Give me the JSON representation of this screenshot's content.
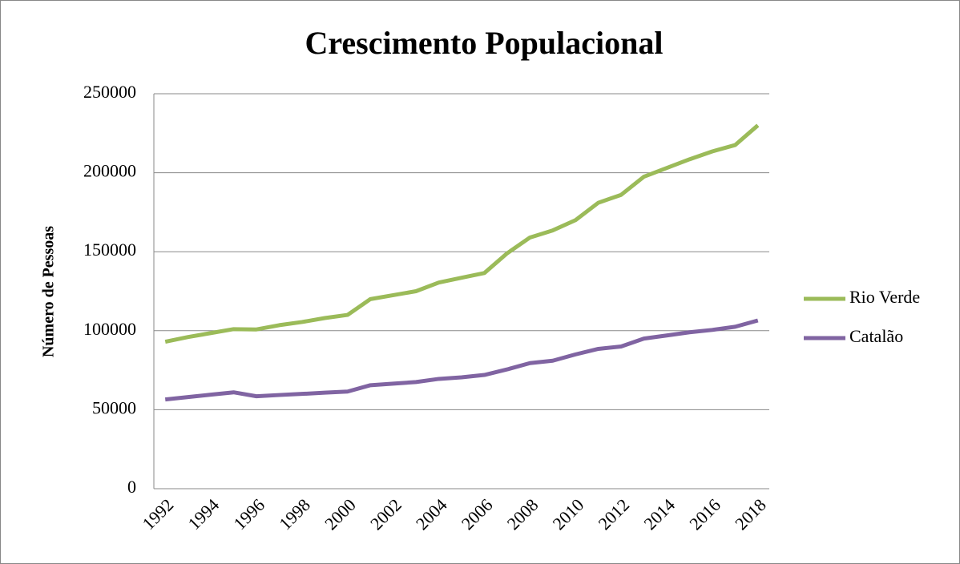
{
  "chart_data": {
    "type": "line",
    "title": "Crescimento Populacional",
    "y_label": "Número de Pessoas",
    "categories": [
      "1992",
      null,
      "1994",
      null,
      "1996",
      null,
      "1998",
      null,
      "2000",
      null,
      "2002",
      null,
      "2004",
      null,
      "2006",
      null,
      "2008",
      null,
      "2010",
      null,
      "2012",
      null,
      "2014",
      null,
      "2016",
      null,
      "2018"
    ],
    "series": [
      {
        "name": "Rio Verde",
        "color": "#9bbb59",
        "values": [
          93000,
          96000,
          98500,
          101000,
          100800,
          103500,
          105500,
          108000,
          110000,
          120000,
          122500,
          125000,
          130500,
          133500,
          136500,
          149000,
          159000,
          163500,
          170000,
          181000,
          186000,
          197500,
          203000,
          208500,
          213500,
          217500,
          230000
        ]
      },
      {
        "name": "Catalão",
        "color": "#8064a2",
        "values": [
          56500,
          58000,
          59500,
          61000,
          58500,
          59300,
          60000,
          60800,
          61500,
          65500,
          66500,
          67500,
          69500,
          70500,
          72000,
          75500,
          79500,
          81000,
          85000,
          88500,
          90000,
          95000,
          97000,
          99000,
          100500,
          102500,
          106500
        ]
      }
    ],
    "ylim": [
      0,
      250000
    ],
    "yticks": [
      0,
      50000,
      100000,
      150000,
      200000,
      250000
    ],
    "grid": true,
    "legend": "right"
  }
}
